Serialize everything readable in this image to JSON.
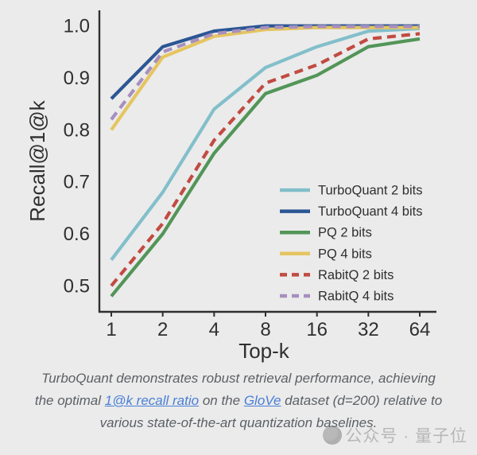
{
  "chart_data": {
    "type": "line",
    "x_categories": [
      "1",
      "2",
      "4",
      "8",
      "16",
      "32",
      "64"
    ],
    "xlabel": "Top-k",
    "ylabel": "Recall@1@k",
    "y_ticks": [
      {
        "label": "1.0",
        "value": 1.0
      },
      {
        "label": "0.9",
        "value": 0.9
      },
      {
        "label": "0.8",
        "value": 0.8
      },
      {
        "label": "0.7",
        "value": 0.7
      },
      {
        "label": "0.6",
        "value": 0.6
      },
      {
        "label": "0.5",
        "value": 0.5
      }
    ],
    "ylim": [
      0.45,
      1.03
    ],
    "grid": false,
    "legend_position": "inside lower right",
    "series": [
      {
        "name": "TurboQuant 2 bits",
        "color": "#82bfca",
        "dashed": false,
        "values": [
          0.55,
          0.68,
          0.84,
          0.92,
          0.96,
          0.99,
          0.995
        ]
      },
      {
        "name": "TurboQuant 4 bits",
        "color": "#2b5694",
        "dashed": false,
        "values": [
          0.86,
          0.96,
          0.99,
          1.0,
          1.0,
          1.0,
          1.0
        ]
      },
      {
        "name": "PQ 2 bits",
        "color": "#529558",
        "dashed": false,
        "values": [
          0.48,
          0.6,
          0.755,
          0.87,
          0.905,
          0.96,
          0.975
        ]
      },
      {
        "name": "PQ 4 bits",
        "color": "#e5c560",
        "dashed": false,
        "values": [
          0.8,
          0.94,
          0.98,
          0.993,
          0.997,
          0.997,
          0.997
        ]
      },
      {
        "name": "RabitQ 2 bits",
        "color": "#c14b42",
        "dashed": true,
        "values": [
          0.5,
          0.62,
          0.78,
          0.89,
          0.925,
          0.975,
          0.985
        ]
      },
      {
        "name": "RabitQ 4 bits",
        "color": "#a78fc0",
        "dashed": true,
        "values": [
          0.82,
          0.95,
          0.985,
          0.997,
          0.999,
          0.999,
          0.999
        ]
      }
    ]
  },
  "caption": {
    "line1": "TurboQuant demonstrates robust retrieval performance, achieving",
    "line2_pre": "the optimal ",
    "link1": "1@k recall ratio",
    "line2_mid": " on the ",
    "link2": "GloVe",
    "line2_post": " dataset (d=200) relative to",
    "line3": "various state-of-the-art quantization baselines."
  },
  "watermark": {
    "text": "公众号 · 量子位"
  },
  "colors": {
    "background": "#ebebeb",
    "axis": "#2f2f2f",
    "caption_text": "#5c6065",
    "link": "#4a7fd6",
    "watermark": "#b7b7b7"
  }
}
